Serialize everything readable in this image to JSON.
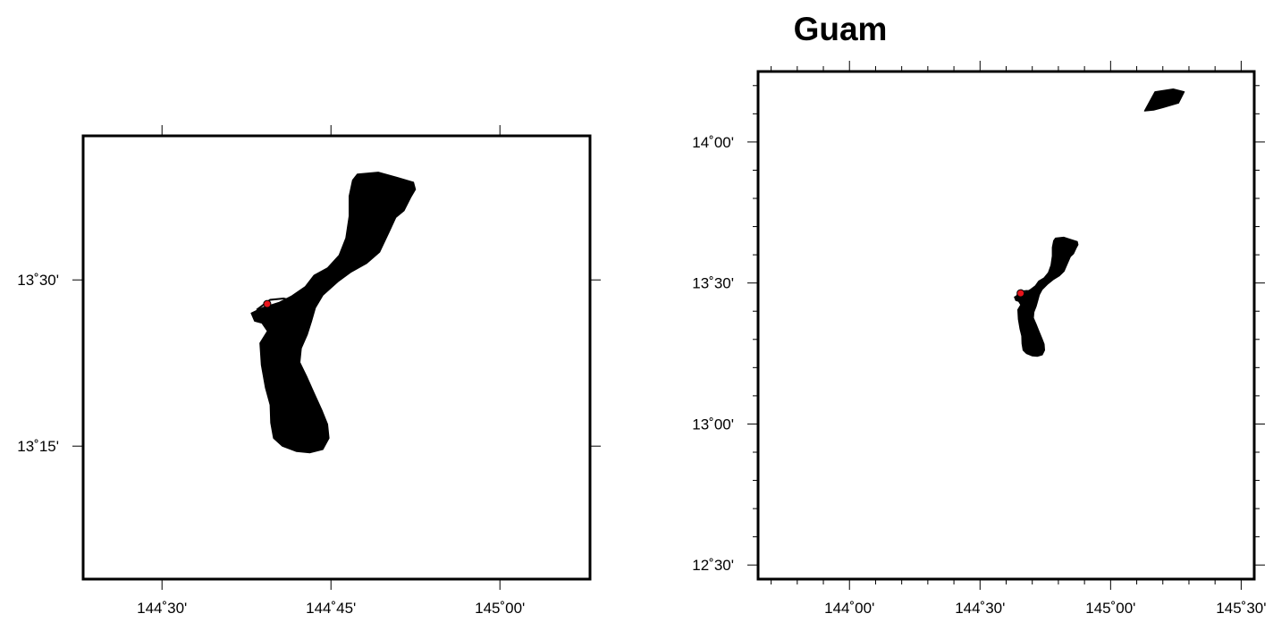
{
  "title": "Guam",
  "colors": {
    "land": "#000000",
    "frame": "#000000",
    "marker_fill": "#e8141c",
    "marker_stroke": "#000000",
    "background": "#ffffff"
  },
  "maps": [
    {
      "id": "detail",
      "lon_range": [
        144.3833,
        145.1333
      ],
      "lat_range": [
        13.05,
        13.7167
      ],
      "x_ticks": [
        {
          "value": 144.5,
          "label": "144˚30'"
        },
        {
          "value": 144.75,
          "label": "144˚45'"
        },
        {
          "value": 145.0,
          "label": "145˚00'"
        }
      ],
      "y_ticks": [
        {
          "value": 13.5,
          "label": "13˚30'"
        },
        {
          "value": 13.25,
          "label": "13˚15'"
        }
      ],
      "minor_x_ticks": [],
      "minor_y_ticks": []
    },
    {
      "id": "overview",
      "lon_range": [
        143.65,
        145.55
      ],
      "lat_range": [
        12.45,
        14.25
      ],
      "x_ticks": [
        {
          "value": 144.0,
          "label": "144˚00'"
        },
        {
          "value": 144.5,
          "label": "144˚30'"
        },
        {
          "value": 145.0,
          "label": "145˚00'"
        },
        {
          "value": 145.5,
          "label": "145˚30'"
        }
      ],
      "y_ticks": [
        {
          "value": 14.0,
          "label": "14˚00'"
        },
        {
          "value": 13.5,
          "label": "13˚30'"
        },
        {
          "value": 13.0,
          "label": "13˚00'"
        },
        {
          "value": 12.5,
          "label": "12˚30'"
        }
      ],
      "minor_x_ticks": [
        143.7,
        143.8,
        143.9,
        144.1,
        144.2,
        144.3,
        144.4,
        144.6,
        144.7,
        144.8,
        144.9,
        145.1,
        145.2,
        145.3,
        145.4
      ],
      "minor_y_ticks": [
        12.6,
        12.7,
        12.8,
        12.9,
        13.1,
        13.2,
        13.3,
        13.4,
        13.6,
        13.7,
        13.8,
        13.9,
        14.1,
        14.2
      ]
    }
  ],
  "islands": [
    {
      "name": "guam",
      "outline": [
        [
          144.789,
          13.659
        ],
        [
          144.82,
          13.662
        ],
        [
          144.848,
          13.654
        ],
        [
          144.872,
          13.647
        ],
        [
          144.875,
          13.636
        ],
        [
          144.868,
          13.624
        ],
        [
          144.858,
          13.604
        ],
        [
          144.846,
          13.594
        ],
        [
          144.836,
          13.572
        ],
        [
          144.822,
          13.542
        ],
        [
          144.803,
          13.525
        ],
        [
          144.78,
          13.512
        ],
        [
          144.76,
          13.497
        ],
        [
          144.738,
          13.477
        ],
        [
          144.727,
          13.458
        ],
        [
          144.721,
          13.437
        ],
        [
          144.715,
          13.418
        ],
        [
          144.706,
          13.397
        ],
        [
          144.704,
          13.376
        ],
        [
          144.714,
          13.355
        ],
        [
          144.725,
          13.33
        ],
        [
          144.737,
          13.303
        ],
        [
          144.745,
          13.283
        ],
        [
          144.747,
          13.262
        ],
        [
          144.738,
          13.245
        ],
        [
          144.719,
          13.24
        ],
        [
          144.699,
          13.242
        ],
        [
          144.678,
          13.25
        ],
        [
          144.665,
          13.262
        ],
        [
          144.661,
          13.285
        ],
        [
          144.66,
          13.312
        ],
        [
          144.653,
          13.338
        ],
        [
          144.647,
          13.372
        ],
        [
          144.645,
          13.405
        ],
        [
          144.656,
          13.423
        ],
        [
          144.648,
          13.435
        ],
        [
          144.637,
          13.438
        ],
        [
          144.632,
          13.45
        ],
        [
          144.648,
          13.458
        ],
        [
          144.673,
          13.466
        ],
        [
          144.692,
          13.476
        ],
        [
          144.712,
          13.49
        ],
        [
          144.725,
          13.507
        ],
        [
          144.745,
          13.518
        ],
        [
          144.762,
          13.537
        ],
        [
          144.772,
          13.563
        ],
        [
          144.777,
          13.596
        ],
        [
          144.777,
          13.626
        ],
        [
          144.782,
          13.65
        ]
      ]
    },
    {
      "name": "rota",
      "outline": [
        [
          145.13,
          14.11
        ],
        [
          145.17,
          14.178
        ],
        [
          145.24,
          14.188
        ],
        [
          145.282,
          14.178
        ],
        [
          145.26,
          14.138
        ],
        [
          145.2,
          14.122
        ],
        [
          145.165,
          14.113
        ]
      ]
    }
  ],
  "causeway": [
    [
      144.64,
      13.455
    ],
    [
      144.66,
      13.47
    ],
    [
      144.68,
      13.472
    ],
    [
      144.7,
      13.467
    ],
    [
      144.71,
      13.472
    ],
    [
      144.722,
      13.47
    ]
  ],
  "marker": {
    "lon": 144.6556,
    "lat": 13.4639
  }
}
